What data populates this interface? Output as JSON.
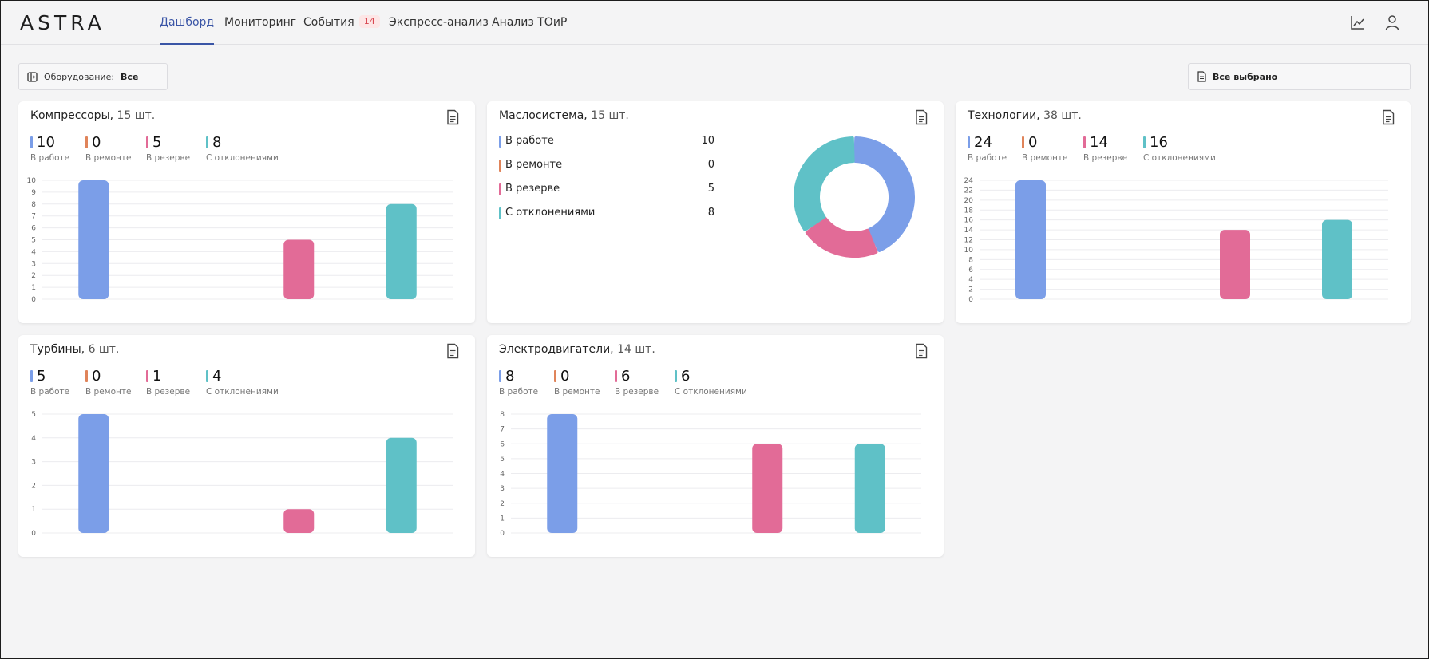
{
  "app": {
    "logo": "ASTRA"
  },
  "nav": {
    "tabs": [
      {
        "label": "Дашборд",
        "active": true
      },
      {
        "label": "Мониторинг"
      },
      {
        "label": "События",
        "badge": "14"
      },
      {
        "label": "Экспресс-анализ"
      },
      {
        "label": "Анализ ТОиР"
      }
    ],
    "right_icons": [
      "chart-line-icon",
      "user-icon"
    ]
  },
  "filters": {
    "equipment_label": "Оборудование:",
    "equipment_value": "Все",
    "selection_value": "Все выбрано"
  },
  "colors": {
    "working": "#7b9ee8",
    "repair": "#e0845a",
    "reserve": "#e26b97",
    "deviation": "#5fc1c7",
    "accent": "#3a55a6",
    "badge_text": "#d8454f",
    "badge_bg": "#fde6e6"
  },
  "status_labels": [
    "В работе",
    "В ремонте",
    "В резерве",
    "С отклонениями"
  ],
  "cards": {
    "compressors": {
      "title": "Компрессоры,",
      "count": "15 шт.",
      "stats": [
        "10",
        "0",
        "5",
        "8"
      ]
    },
    "oil": {
      "title": "Маслосистема,",
      "count": "15 шт.",
      "rows": [
        {
          "label": "В работе",
          "value": "10"
        },
        {
          "label": "В ремонте",
          "value": "0"
        },
        {
          "label": "В резерве",
          "value": "5"
        },
        {
          "label": "С отклонениями",
          "value": "8"
        }
      ]
    },
    "technologies": {
      "title": "Технологии,",
      "count": "38 шт.",
      "stats": [
        "24",
        "0",
        "14",
        "16"
      ]
    },
    "turbines": {
      "title": "Турбины,",
      "count": "6 шт.",
      "stats": [
        "5",
        "0",
        "1",
        "4"
      ]
    },
    "motors": {
      "title": "Электродвигатели,",
      "count": "14 шт.",
      "stats": [
        "8",
        "0",
        "6",
        "6"
      ]
    }
  },
  "chart_data": [
    {
      "id": "compressors",
      "type": "bar",
      "categories": [
        "В работе",
        "В ремонте",
        "В резерве",
        "С отклонениями"
      ],
      "values": [
        10,
        0,
        5,
        8
      ],
      "ylim": [
        0,
        10
      ],
      "yticks": [
        0,
        1,
        2,
        3,
        4,
        5,
        6,
        7,
        8,
        9,
        10
      ],
      "grid": true
    },
    {
      "id": "oil",
      "type": "pie",
      "categories": [
        "В работе",
        "В ремонте",
        "В резерве",
        "С отклонениями"
      ],
      "values": [
        10,
        0,
        5,
        8
      ],
      "donut": true
    },
    {
      "id": "technologies",
      "type": "bar",
      "categories": [
        "В работе",
        "В ремонте",
        "В резерве",
        "С отклонениями"
      ],
      "values": [
        24,
        0,
        14,
        16
      ],
      "ylim": [
        0,
        24
      ],
      "yticks": [
        0,
        2,
        4,
        6,
        8,
        10,
        12,
        14,
        16,
        18,
        20,
        22,
        24
      ],
      "grid": true
    },
    {
      "id": "turbines",
      "type": "bar",
      "categories": [
        "В работе",
        "В ремонте",
        "В резерве",
        "С отклонениями"
      ],
      "values": [
        5,
        0,
        1,
        4
      ],
      "ylim": [
        0,
        5
      ],
      "yticks": [
        0,
        1,
        2,
        3,
        4,
        5
      ],
      "grid": true
    },
    {
      "id": "motors",
      "type": "bar",
      "categories": [
        "В работе",
        "В ремонте",
        "В резерве",
        "С отклонениями"
      ],
      "values": [
        8,
        0,
        6,
        6
      ],
      "ylim": [
        0,
        8
      ],
      "yticks": [
        0,
        1,
        2,
        3,
        4,
        5,
        6,
        7,
        8
      ],
      "grid": true
    }
  ]
}
